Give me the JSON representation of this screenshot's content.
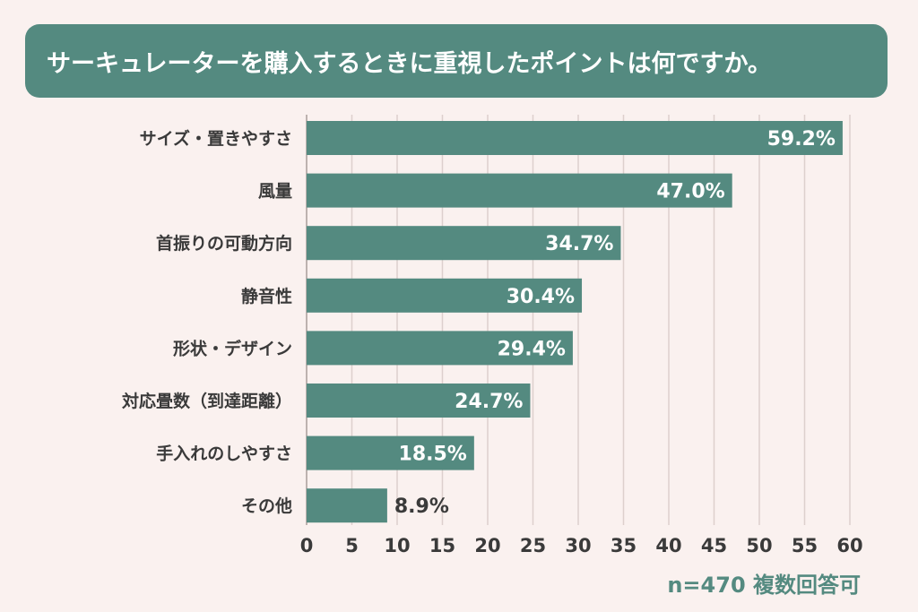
{
  "title": "サーキュレーターを購入するときに重視したポイントは何ですか。",
  "footnote": "n=470 複数回答可",
  "colors": {
    "background": "#FAF1EF",
    "accent": "#548A80",
    "bar": "#548A80",
    "grid": "#DDD0CD",
    "label_text": "#3A3A3A",
    "value_inside": "#FFFFFF",
    "value_outside": "#3A3A3A"
  },
  "chart_data": {
    "type": "bar",
    "orientation": "horizontal",
    "categories": [
      "サイズ・置きやすさ",
      "風量",
      "首振りの可動方向",
      "静音性",
      "形状・デザイン",
      "対応畳数（到達距離）",
      "手入れのしやすさ",
      "その他"
    ],
    "values": [
      59.2,
      47.0,
      34.7,
      30.4,
      29.4,
      24.7,
      18.5,
      8.9
    ],
    "value_labels": [
      "59.2%",
      "47.0%",
      "34.7%",
      "30.4%",
      "29.4%",
      "24.7%",
      "18.5%",
      "8.9%"
    ],
    "x_ticks": [
      "0",
      "5",
      "10",
      "15",
      "20",
      "25",
      "30",
      "35",
      "40",
      "45",
      "50",
      "55",
      "60"
    ],
    "xlim": [
      0,
      60
    ],
    "grid": true
  }
}
